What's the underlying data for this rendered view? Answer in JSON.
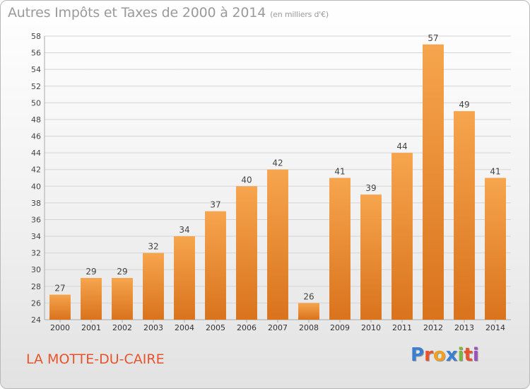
{
  "header": {
    "title": "Autres Impôts et Taxes de 2000 à 2014",
    "unit": "(en milliers d'€)"
  },
  "footer": {
    "place": "LA MOTTE-DU-CAIRE",
    "logo": [
      "P",
      "r",
      "o",
      "x",
      "i",
      "t",
      "i"
    ],
    "logo_colors": [
      "#3a7fd0",
      "#e8532b",
      "#f0a020",
      "#3a7fd0",
      "#79b83a",
      "#e8532b",
      "#9c4fc0"
    ]
  },
  "chart_data": {
    "type": "bar",
    "title": "Autres Impôts et Taxes de 2000 à 2014",
    "categories": [
      "2000",
      "2001",
      "2002",
      "2003",
      "2004",
      "2005",
      "2006",
      "2007",
      "2008",
      "2009",
      "2010",
      "2011",
      "2012",
      "2013",
      "2014"
    ],
    "values": [
      27,
      29,
      29,
      32,
      34,
      37,
      40,
      42,
      26,
      41,
      39,
      44,
      57,
      49,
      41
    ],
    "ylim": [
      24,
      58
    ],
    "yticks": [
      24,
      26,
      28,
      30,
      32,
      34,
      36,
      38,
      40,
      42,
      44,
      46,
      48,
      50,
      52,
      54,
      56,
      58
    ],
    "grid": true,
    "bar_color_top": "#f6a54e",
    "bar_color_bottom": "#d9731c"
  }
}
